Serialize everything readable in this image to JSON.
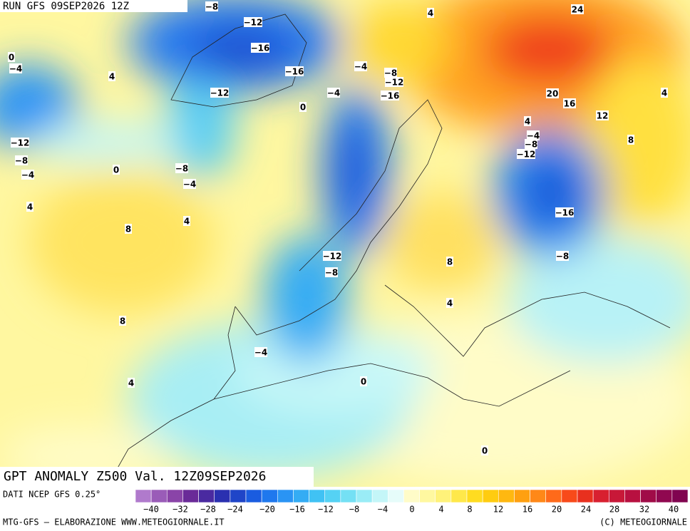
{
  "header": {
    "run": "RUN GFS 09SEP2026 12Z"
  },
  "map": {
    "title": "GPT ANOMALY Z500 Val. 12Z09SEP2026",
    "contour_labels": [
      "−8",
      "−12",
      "−16",
      "−16",
      "−12",
      "−4",
      "−4",
      "−8",
      "−12",
      "−16",
      "0",
      "4",
      "24",
      "20",
      "16",
      "12",
      "8",
      "4",
      "4",
      "−4",
      "−8",
      "−12",
      "−16",
      "−8",
      "8",
      "4",
      "0",
      "0",
      "−12",
      "−8",
      "−4",
      "4",
      "8",
      "8",
      "4",
      "4",
      "0",
      "−4",
      "−8",
      "−12",
      "−8",
      "−4",
      "4",
      "0",
      "−4"
    ]
  },
  "colorbar": {
    "source": "DATI NCEP GFS 0.25°",
    "colors": [
      "#b07acc",
      "#9a5cb8",
      "#8a44a8",
      "#6a2a98",
      "#4a2aa0",
      "#2a30b0",
      "#1f45c8",
      "#1a5ce0",
      "#1f78ee",
      "#2a94f4",
      "#34acf4",
      "#40c2f4",
      "#55d2f4",
      "#74e0f4",
      "#9aecf6",
      "#c4f6f8",
      "#e6fcfa",
      "#fffcc8",
      "#fff8a0",
      "#fff27a",
      "#ffe84a",
      "#ffdc20",
      "#ffcc10",
      "#ffb810",
      "#ffa010",
      "#ff8818",
      "#ff6a1a",
      "#f84a1a",
      "#e8301e",
      "#d82030",
      "#c81838",
      "#b81040",
      "#a00c48",
      "#900850",
      "#800450"
    ],
    "ticks": [
      "−40",
      "−32",
      "−28",
      "−24",
      "−20",
      "−16",
      "−12",
      "−8",
      "−4",
      "0",
      "4",
      "8",
      "12",
      "16",
      "20",
      "24",
      "28",
      "32",
      "40"
    ]
  },
  "footer": {
    "left": "MTG-GFS – ELABORAZIONE WWW.METEOGIORNALE.IT",
    "right": "(C) METEOGIORNALE"
  }
}
